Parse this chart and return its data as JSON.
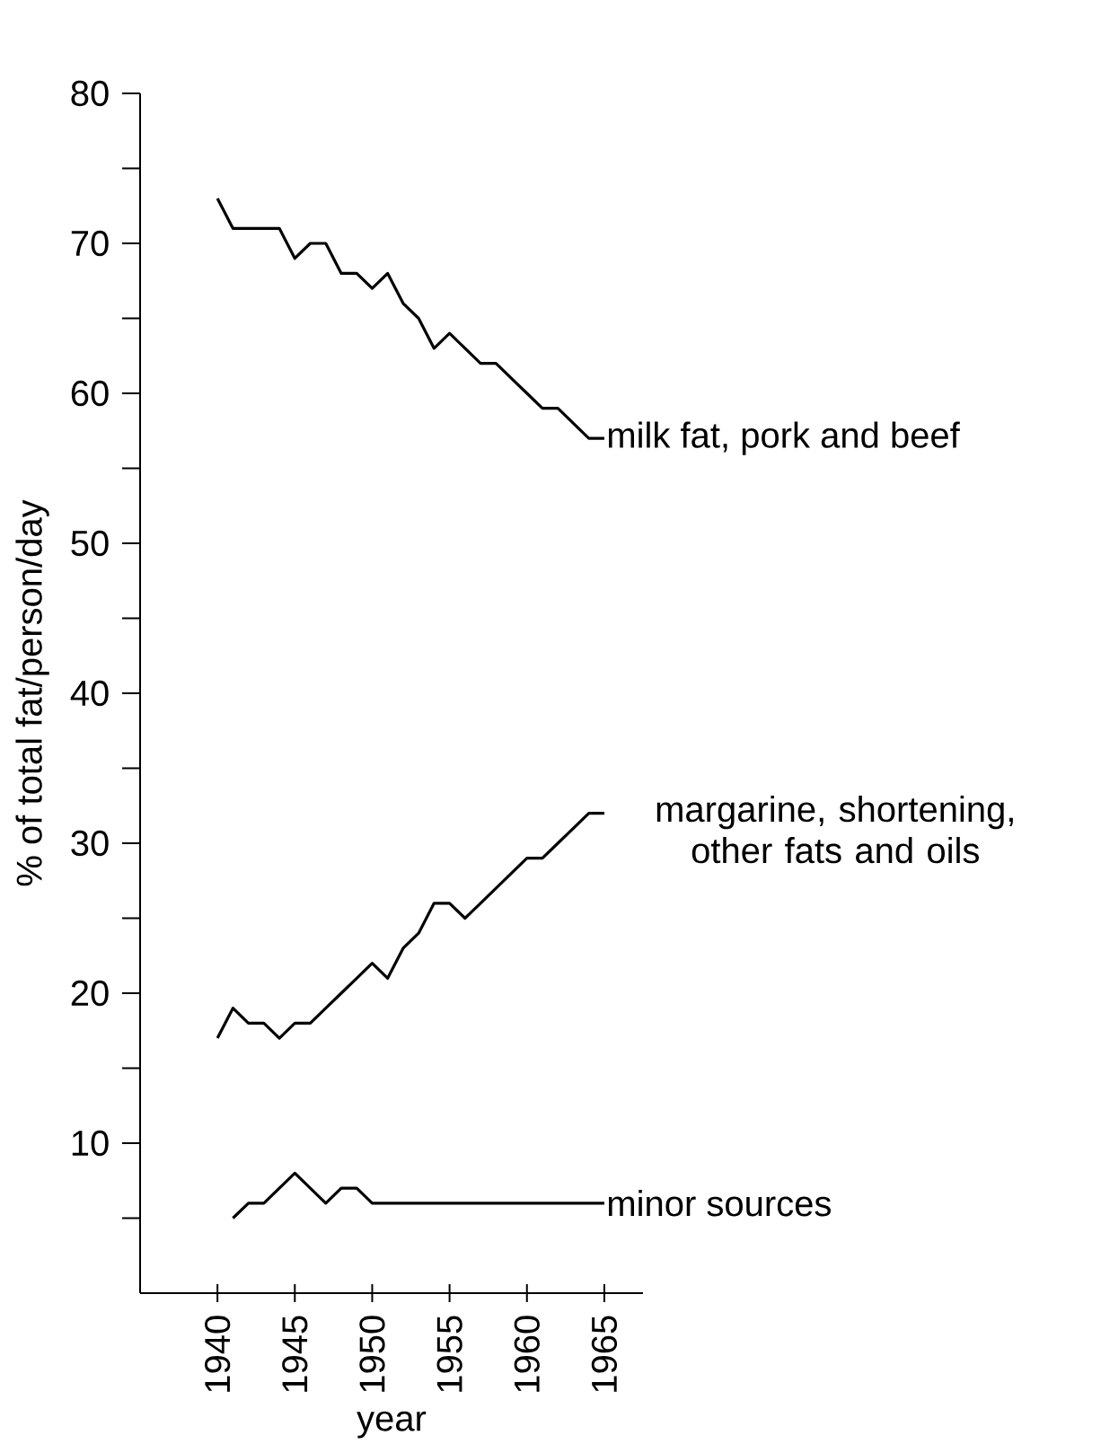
{
  "chart_data": {
    "type": "line",
    "xlabel": "year",
    "ylabel": "% of total fat/person/day",
    "xlim": [
      1935,
      1967.5
    ],
    "ylim": [
      0,
      80
    ],
    "xticks": [
      1940,
      1945,
      1950,
      1955,
      1960,
      1965
    ],
    "yticks": [
      {
        "value": 5,
        "label": null
      },
      10,
      {
        "value": 15,
        "label": null
      },
      20,
      {
        "value": 25,
        "label": null
      },
      30,
      {
        "value": 35,
        "label": null
      },
      40,
      {
        "value": 45,
        "label": null
      },
      50,
      {
        "value": 55,
        "label": null
      },
      60,
      {
        "value": 65,
        "label": null
      },
      70,
      {
        "value": 75,
        "label": null
      },
      80
    ],
    "grid": false,
    "legend": false,
    "marker": "none",
    "line_style": "solid",
    "series": [
      {
        "name": "milk fat, pork and beef",
        "color": "#000000",
        "x": [
          1940,
          1941,
          1942,
          1943,
          1944,
          1945,
          1946,
          1947,
          1948,
          1949,
          1950,
          1951,
          1952,
          1953,
          1954,
          1955,
          1956,
          1957,
          1958,
          1959,
          1960,
          1961,
          1962,
          1963,
          1964,
          1965
        ],
        "values": [
          73,
          71,
          71,
          71,
          71,
          69,
          70,
          70,
          68,
          68,
          67,
          68,
          66,
          65,
          63,
          64,
          63,
          62,
          62,
          61,
          60,
          59,
          59,
          58,
          57,
          57
        ]
      },
      {
        "name": "margarine, shortening, other fats and oils",
        "color": "#000000",
        "x": [
          1940,
          1941,
          1942,
          1943,
          1944,
          1945,
          1946,
          1947,
          1948,
          1949,
          1950,
          1951,
          1952,
          1953,
          1954,
          1955,
          1956,
          1957,
          1958,
          1959,
          1960,
          1961,
          1962,
          1963,
          1964,
          1965
        ],
        "values": [
          17,
          19,
          18,
          18,
          17,
          18,
          18,
          19,
          20,
          21,
          22,
          21,
          23,
          24,
          26,
          26,
          25,
          26,
          27,
          28,
          29,
          29,
          30,
          31,
          32,
          32
        ]
      },
      {
        "name": "minor sources",
        "color": "#000000",
        "x": [
          1941,
          1942,
          1943,
          1944,
          1945,
          1946,
          1947,
          1948,
          1949,
          1950,
          1965
        ],
        "values": [
          5,
          6,
          6,
          7,
          8,
          7,
          6,
          7,
          7,
          6,
          6
        ]
      }
    ]
  }
}
